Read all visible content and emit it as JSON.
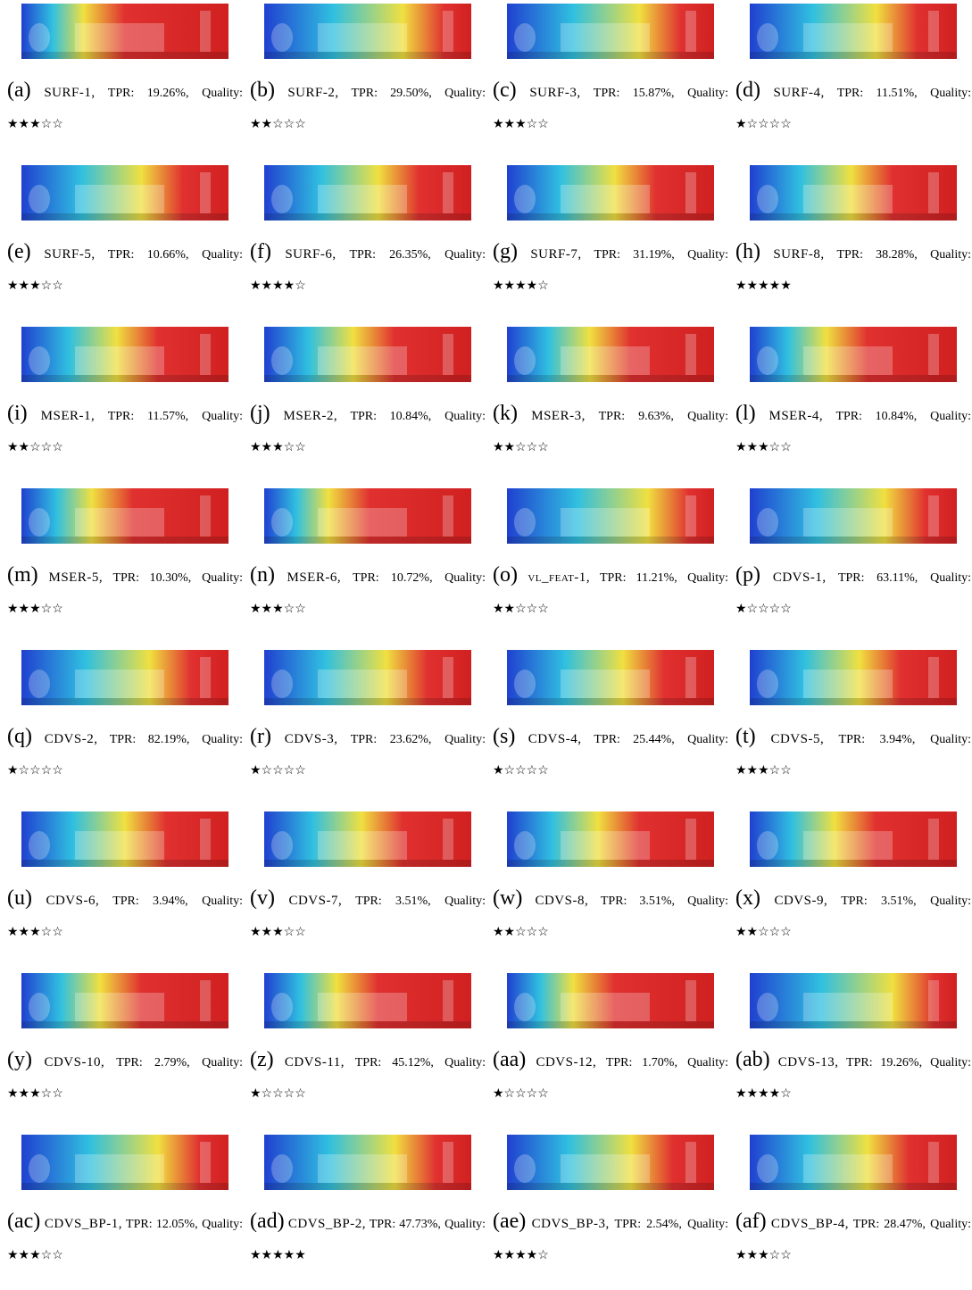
{
  "panels": [
    {
      "label": "(a)",
      "method": "SURF-1",
      "tpr": "TPR: 19.26%,",
      "quality": "Quality: ★★★☆☆"
    },
    {
      "label": "(b)",
      "method": "SURF-2",
      "tpr": "TPR: 29.50%,",
      "quality": "Quality: ★★☆☆☆"
    },
    {
      "label": "(c)",
      "method": "SURF-3",
      "tpr": "TPR: 15.87%,",
      "quality": "Quality: ★★★☆☆"
    },
    {
      "label": "(d)",
      "method": "SURF-4",
      "tpr": "TPR: 11.51%,",
      "quality": "Quality: ★☆☆☆☆"
    },
    {
      "label": "(e)",
      "method": "SURF-5",
      "tpr": "TPR: 10.66%,",
      "quality": "Quality: ★★★☆☆"
    },
    {
      "label": "(f)",
      "method": "SURF-6",
      "tpr": "TPR: 26.35%,",
      "quality": "Quality: ★★★★☆"
    },
    {
      "label": "(g)",
      "method": "SURF-7",
      "tpr": "TPR: 31.19%,",
      "quality": "Quality: ★★★★☆"
    },
    {
      "label": "(h)",
      "method": "SURF-8",
      "tpr": "TPR: 38.28%,",
      "quality": "Quality: ★★★★★"
    },
    {
      "label": "(i)",
      "method": "MSER-1",
      "tpr": "TPR: 11.57%,",
      "quality": "Quality: ★★☆☆☆"
    },
    {
      "label": "(j)",
      "method": "MSER-2",
      "tpr": "TPR: 10.84%,",
      "quality": "Quality: ★★★☆☆"
    },
    {
      "label": "(k)",
      "method": "MSER-3",
      "tpr": "TPR: 9.63%,",
      "quality": "Quality: ★★☆☆☆"
    },
    {
      "label": "(l)",
      "method": "MSER-4",
      "tpr": "TPR: 10.84%,",
      "quality": "Quality: ★★★☆☆"
    },
    {
      "label": "(m)",
      "method": "MSER-5",
      "tpr": "TPR: 10.30%,",
      "quality": "Quality: ★★★☆☆"
    },
    {
      "label": "(n)",
      "method": "MSER-6",
      "tpr": "TPR: 10.72%,",
      "quality": "Quality: ★★★☆☆"
    },
    {
      "label": "(o)",
      "method": "vl_feat-1",
      "tpr": "TPR: 11.21%,",
      "quality": "Quality: ★★☆☆☆"
    },
    {
      "label": "(p)",
      "method": "CDVS-1",
      "tpr": "TPR: 63.11%,",
      "quality": "Quality: ★☆☆☆☆"
    },
    {
      "label": "(q)",
      "method": "CDVS-2",
      "tpr": "TPR: 82.19%,",
      "quality": "Quality: ★☆☆☆☆"
    },
    {
      "label": "(r)",
      "method": "CDVS-3",
      "tpr": "TPR: 23.62%,",
      "quality": "Quality: ★☆☆☆☆"
    },
    {
      "label": "(s)",
      "method": "CDVS-4",
      "tpr": "TPR: 25.44%,",
      "quality": "Quality: ★☆☆☆☆"
    },
    {
      "label": "(t)",
      "method": "CDVS-5",
      "tpr": "TPR: 3.94%,",
      "quality": "Quality: ★★★☆☆"
    },
    {
      "label": "(u)",
      "method": "CDVS-6",
      "tpr": "TPR: 3.94%,",
      "quality": "Quality: ★★★☆☆"
    },
    {
      "label": "(v)",
      "method": "CDVS-7",
      "tpr": "TPR: 3.51%,",
      "quality": "Quality: ★★★☆☆"
    },
    {
      "label": "(w)",
      "method": "CDVS-8",
      "tpr": "TPR: 3.51%,",
      "quality": "Quality: ★★☆☆☆"
    },
    {
      "label": "(x)",
      "method": "CDVS-9",
      "tpr": "TPR: 3.51%,",
      "quality": "Quality: ★★☆☆☆"
    },
    {
      "label": "(y)",
      "method": "CDVS-10",
      "tpr": "TPR: 2.79%,",
      "quality": "Quality: ★★★☆☆"
    },
    {
      "label": "(z)",
      "method": "CDVS-11",
      "tpr": "TPR: 45.12%,",
      "quality": "Quality: ★☆☆☆☆"
    },
    {
      "label": "(aa)",
      "method": "CDVS-12",
      "tpr": "TPR: 1.70%,",
      "quality": "Quality: ★☆☆☆☆"
    },
    {
      "label": "(ab)",
      "method": "CDVS-13",
      "tpr": "TPR: 19.26%,",
      "quality": "Quality: ★★★★☆"
    },
    {
      "label": "(ac)",
      "method": "CDVS_BP-1",
      "tpr": "TPR: 12.05%,",
      "quality": "Quality: ★★★☆☆"
    },
    {
      "label": "(ad)",
      "method": "CDVS_BP-2",
      "tpr": "TPR: 47.73%,",
      "quality": "Quality: ★★★★★"
    },
    {
      "label": "(ae)",
      "method": "CDVS_BP-3",
      "tpr": "TPR: 2.54%,",
      "quality": "Quality: ★★★★☆"
    },
    {
      "label": "(af)",
      "method": "CDVS_BP-4",
      "tpr": "TPR: 28.47%,",
      "quality": "Quality: ★★★☆☆"
    }
  ]
}
